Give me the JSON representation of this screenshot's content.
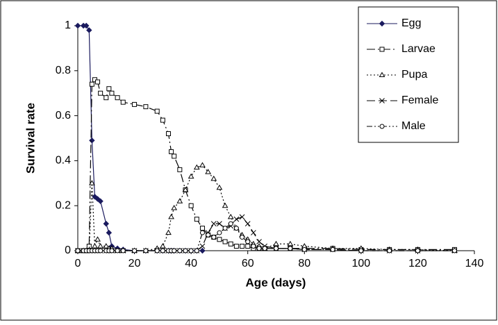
{
  "chart_data": {
    "type": "line",
    "x_label": "Age (days)",
    "y_label": "Survival rate",
    "x": [
      0,
      2,
      3,
      4,
      5,
      6,
      7,
      8,
      10,
      11,
      12,
      14,
      16,
      20,
      24,
      28,
      30,
      32,
      33,
      34,
      36,
      38,
      40,
      42,
      44,
      46,
      48,
      50,
      52,
      54,
      56,
      58,
      60,
      62,
      64,
      66,
      70,
      75,
      80,
      90,
      100,
      110,
      120,
      133
    ],
    "series": [
      {
        "name": "Egg",
        "color": "#1a1a5e",
        "marker": "diamond",
        "dash": "",
        "values": [
          1,
          1,
          1,
          0.98,
          0.49,
          0.24,
          0.23,
          0.22,
          0.12,
          0.08,
          0.02,
          0.01,
          0.005,
          0,
          0,
          0,
          0,
          0,
          0,
          0,
          0,
          0,
          0,
          0,
          0,
          null,
          null,
          null,
          null,
          null,
          null,
          null,
          null,
          null,
          null,
          null,
          null,
          null,
          null,
          null,
          null,
          null,
          null,
          null
        ]
      },
      {
        "name": "Larvae",
        "color": "#000000",
        "marker": "square",
        "dash": "12 4 2 4",
        "values": [
          0,
          0,
          0,
          0.02,
          0.74,
          0.76,
          0.75,
          0.7,
          0.68,
          0.72,
          0.7,
          0.68,
          0.66,
          0.65,
          0.64,
          0.62,
          0.58,
          0.52,
          0.44,
          0.42,
          0.36,
          0.27,
          0.2,
          0.14,
          0.1,
          0.07,
          0.06,
          0.05,
          0.04,
          0.03,
          0.02,
          0.02,
          0.02,
          0.01,
          0.01,
          0.01,
          0.01,
          0.01,
          0.01,
          0.01,
          0.005,
          0.005,
          0.005,
          0.005
        ]
      },
      {
        "name": "Pupa",
        "color": "#000000",
        "marker": "triangle",
        "dash": "2 3",
        "values": [
          0,
          0,
          0,
          0,
          0.3,
          0.02,
          0.05,
          0.02,
          0.02,
          0.01,
          0.01,
          0,
          0,
          0,
          0,
          0.01,
          0.02,
          0.08,
          0.15,
          0.19,
          0.22,
          0.27,
          0.33,
          0.37,
          0.38,
          0.35,
          0.32,
          0.28,
          0.2,
          0.15,
          0.1,
          0.07,
          0.05,
          0.03,
          0.02,
          0.01,
          0.03,
          0.03,
          0.02,
          0.01,
          0.01,
          0.005,
          0.005,
          0
        ]
      },
      {
        "name": "Female",
        "color": "#000000",
        "marker": "cross",
        "dash": "12 5",
        "values": [
          0,
          0,
          0,
          0,
          0,
          0,
          0,
          0,
          0,
          0,
          0,
          0,
          0,
          0,
          0,
          0,
          0,
          0,
          0,
          0,
          0,
          0,
          0,
          0,
          0.02,
          0.08,
          0.12,
          0.12,
          0.1,
          0.11,
          0.14,
          0.15,
          0.12,
          0.08,
          0.04,
          0.02,
          0.01,
          0.01,
          0.005,
          0.005,
          0,
          0,
          0,
          0
        ]
      },
      {
        "name": "Male",
        "color": "#000000",
        "marker": "circle",
        "dash": "8 3 2 3 2 3",
        "values": [
          0,
          0,
          0,
          0,
          0,
          0,
          0,
          0,
          0,
          0,
          0,
          0,
          0,
          0,
          0,
          0,
          0,
          0,
          0,
          0,
          0,
          0,
          0,
          0,
          0.08,
          0.07,
          0.06,
          0.08,
          0.1,
          0.12,
          0.1,
          0.06,
          0.04,
          0.02,
          0.01,
          0.01,
          0.01,
          0.01,
          0.005,
          0.005,
          0,
          0,
          0,
          0
        ]
      }
    ],
    "xlim": [
      0,
      140
    ],
    "xticks": [
      0,
      20,
      40,
      60,
      80,
      100,
      120,
      140
    ],
    "ylim": [
      0,
      1
    ],
    "yticks": [
      0,
      0.2,
      0.4,
      0.6,
      0.8,
      1
    ],
    "legend": "upper right"
  }
}
